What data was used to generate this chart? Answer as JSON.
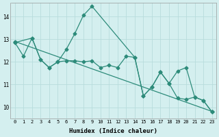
{
  "xlabel": "Humidex (Indice chaleur)",
  "xlim": [
    -0.5,
    23.5
  ],
  "ylim": [
    9.5,
    14.6
  ],
  "yticks": [
    10,
    11,
    12,
    13,
    14
  ],
  "xticks": [
    0,
    1,
    2,
    3,
    4,
    5,
    6,
    7,
    8,
    9,
    10,
    11,
    12,
    13,
    14,
    15,
    16,
    17,
    18,
    19,
    20,
    21,
    22,
    23
  ],
  "bg_color": "#d4efef",
  "grid_color": "#b8dcdc",
  "line_color": "#2d8b7a",
  "line_width": 0.9,
  "marker": "D",
  "marker_size": 2.5,
  "series1_x": [
    0,
    2,
    3,
    4,
    5,
    6,
    7,
    8,
    9,
    14,
    15,
    16,
    17,
    18,
    19,
    20,
    21,
    22,
    23
  ],
  "series1_y": [
    12.85,
    13.05,
    12.1,
    11.75,
    12.0,
    12.55,
    13.25,
    14.05,
    14.45,
    12.2,
    10.5,
    10.9,
    11.55,
    11.05,
    10.4,
    10.35,
    10.45,
    10.3,
    9.8
  ],
  "series2_x": [
    0,
    1,
    2,
    3,
    4,
    5,
    6,
    7,
    8,
    9,
    10,
    11,
    12,
    13,
    14,
    15,
    16,
    17,
    18,
    19,
    20,
    21,
    22,
    23
  ],
  "series2_y": [
    12.85,
    12.25,
    13.05,
    12.1,
    11.75,
    12.0,
    12.05,
    12.05,
    12.0,
    12.05,
    11.75,
    11.85,
    11.75,
    12.25,
    12.2,
    10.5,
    10.9,
    11.55,
    11.05,
    11.6,
    11.75,
    10.45,
    10.3,
    9.8
  ],
  "trend_x": [
    0,
    23
  ],
  "trend_y": [
    12.9,
    9.82
  ]
}
